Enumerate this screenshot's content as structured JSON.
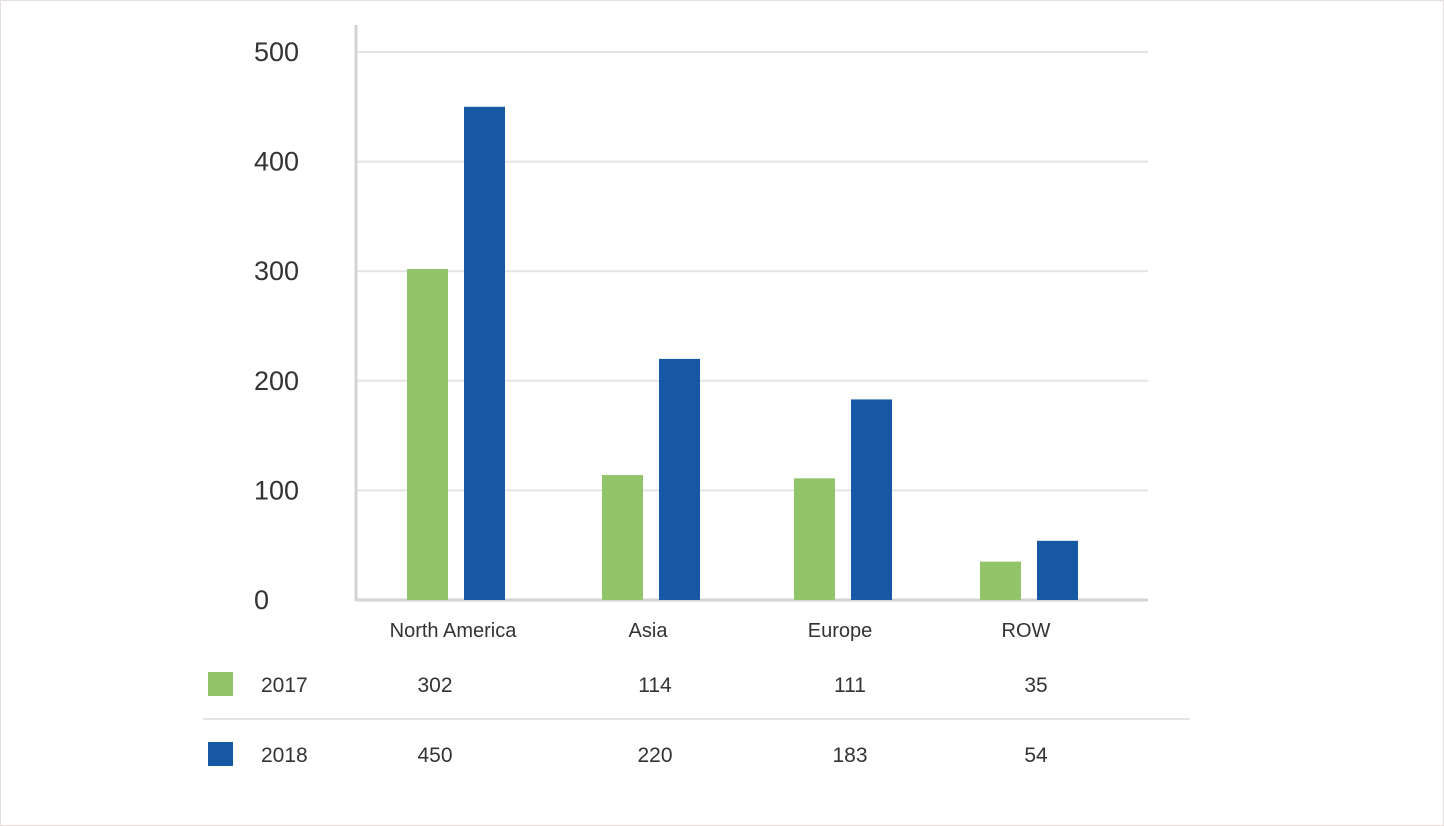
{
  "chart_data": {
    "type": "bar",
    "title": "",
    "xlabel": "",
    "ylabel": "",
    "ylim": [
      0,
      500
    ],
    "yticks": [
      0,
      100,
      200,
      300,
      400,
      500
    ],
    "grid": true,
    "categories": [
      "North America",
      "Asia",
      "Europe",
      "ROW"
    ],
    "series": [
      {
        "name": "2017",
        "values": [
          302,
          114,
          111,
          35
        ],
        "color": "#92c46a"
      },
      {
        "name": "2018",
        "values": [
          450,
          220,
          183,
          54
        ],
        "color": "#1658a4"
      }
    ],
    "chart_note": "bars in the picture are drawn slightly off the printed values; data uses the printed table values"
  },
  "data_table": {
    "rows": [
      {
        "label": "2017",
        "values": [
          "302",
          "114",
          "111",
          "35"
        ]
      },
      {
        "label": "2018",
        "values": [
          "450",
          "220",
          "183",
          "54"
        ]
      }
    ]
  }
}
